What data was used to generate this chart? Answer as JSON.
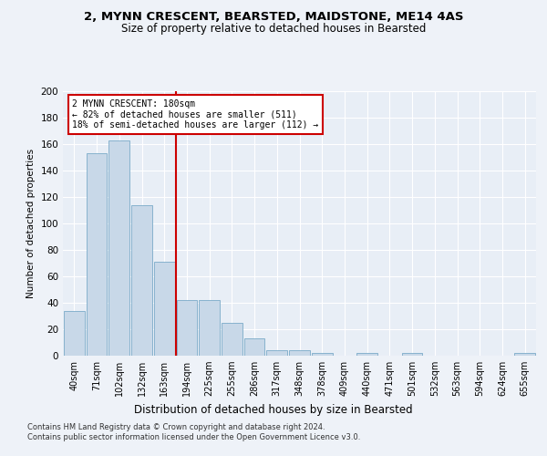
{
  "title1": "2, MYNN CRESCENT, BEARSTED, MAIDSTONE, ME14 4AS",
  "title2": "Size of property relative to detached houses in Bearsted",
  "xlabel": "Distribution of detached houses by size in Bearsted",
  "ylabel": "Number of detached properties",
  "categories": [
    "40sqm",
    "71sqm",
    "102sqm",
    "132sqm",
    "163sqm",
    "194sqm",
    "225sqm",
    "255sqm",
    "286sqm",
    "317sqm",
    "348sqm",
    "378sqm",
    "409sqm",
    "440sqm",
    "471sqm",
    "501sqm",
    "532sqm",
    "563sqm",
    "594sqm",
    "624sqm",
    "655sqm"
  ],
  "values": [
    34,
    153,
    163,
    114,
    71,
    42,
    42,
    25,
    13,
    4,
    4,
    2,
    0,
    2,
    0,
    2,
    0,
    0,
    0,
    0,
    2
  ],
  "bar_color": "#c8d8e8",
  "bar_edge_color": "#7aaac8",
  "vline_x_idx": 4.5,
  "vline_color": "#cc0000",
  "annotation_text": "2 MYNN CRESCENT: 180sqm\n← 82% of detached houses are smaller (511)\n18% of semi-detached houses are larger (112) →",
  "annotation_box_color": "#cc0000",
  "ylim": [
    0,
    200
  ],
  "yticks": [
    0,
    20,
    40,
    60,
    80,
    100,
    120,
    140,
    160,
    180,
    200
  ],
  "footer1": "Contains HM Land Registry data © Crown copyright and database right 2024.",
  "footer2": "Contains public sector information licensed under the Open Government Licence v3.0.",
  "bg_color": "#eef2f8",
  "plot_bg_color": "#e8eef6"
}
